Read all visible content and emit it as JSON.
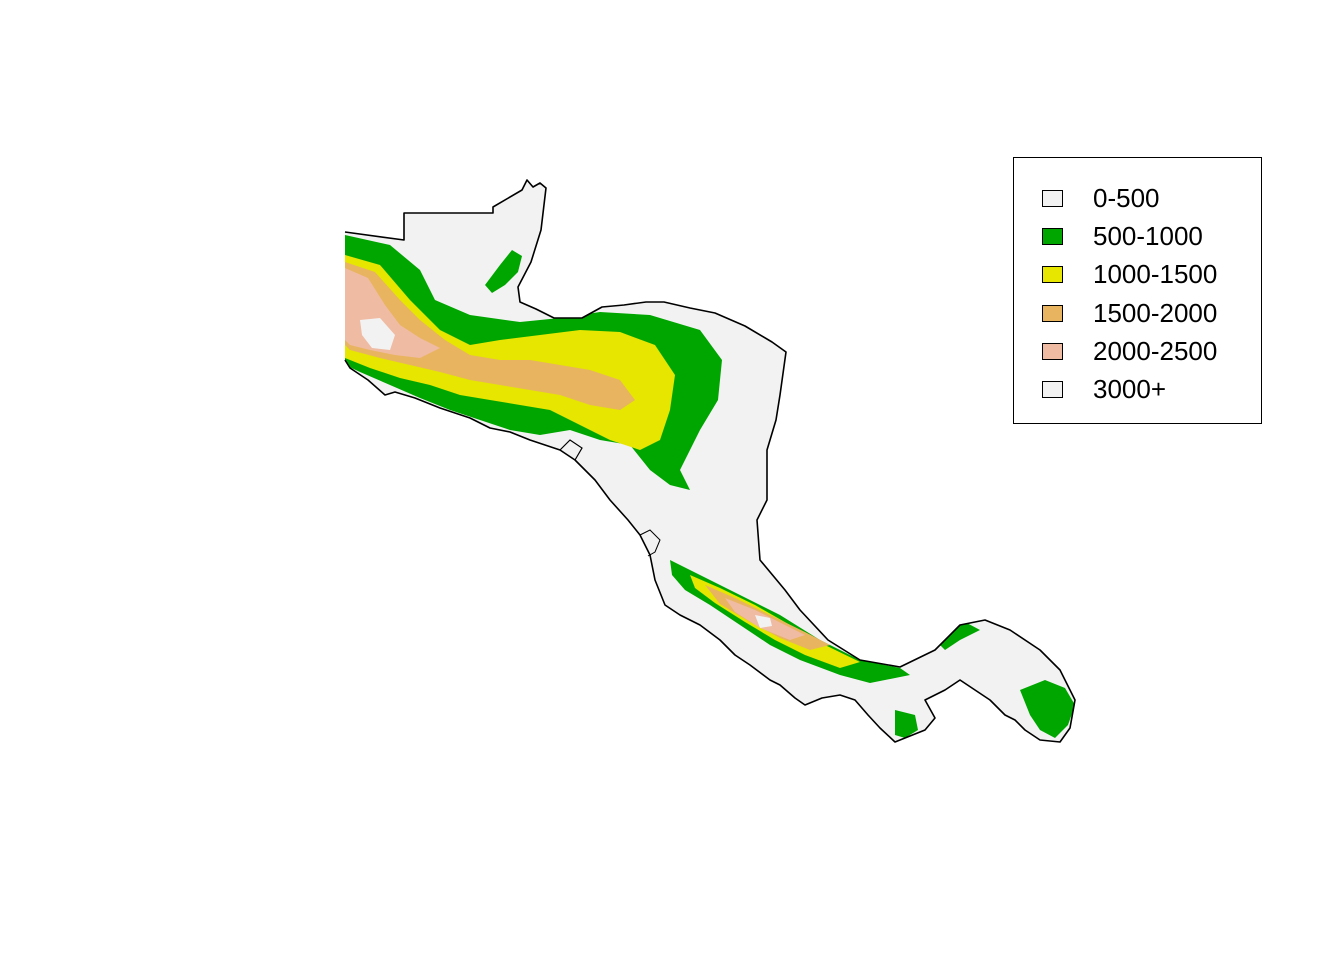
{
  "map": {
    "legend": {
      "items": [
        {
          "label": "0-500",
          "color": "#f2f2f2"
        },
        {
          "label": "500-1000",
          "color": "#00a600"
        },
        {
          "label": "1000-1500",
          "color": "#e6e600"
        },
        {
          "label": "1500-2000",
          "color": "#e8b45f"
        },
        {
          "label": "2000-2500",
          "color": "#f0bba3"
        },
        {
          "label": "3000+",
          "color": "#f2f2f2"
        }
      ]
    }
  }
}
